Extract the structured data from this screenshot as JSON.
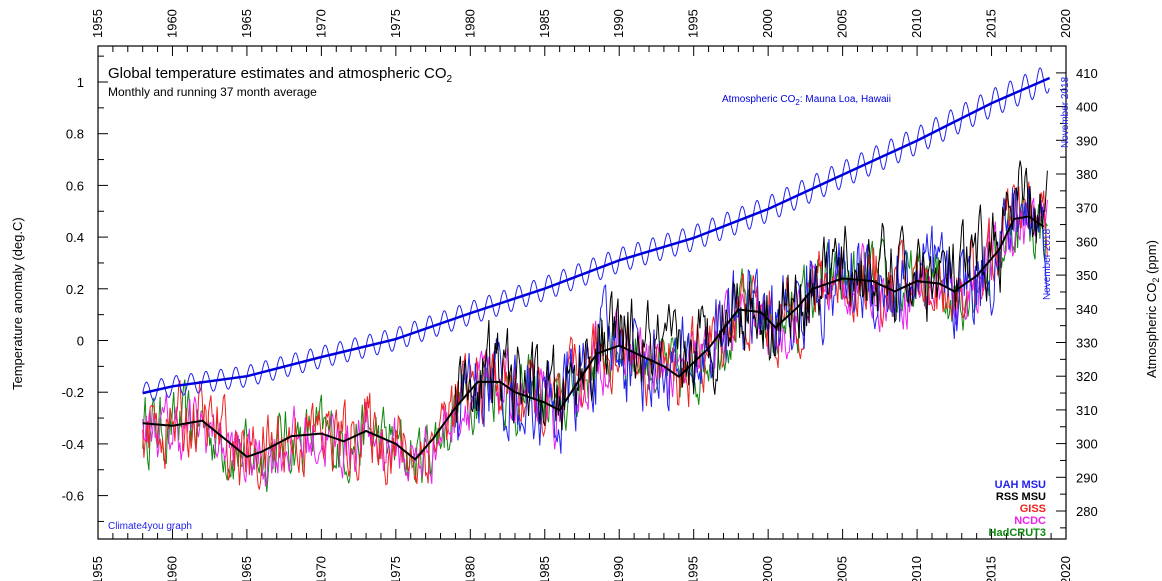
{
  "chart_data": {
    "type": "line",
    "title": "Global temperature estimates and atmospheric CO",
    "title_sub": "2",
    "subtitle": "Monthly and running 37 month average",
    "ylabel_left": "Temperature anomaly (deg.C)",
    "ylabel_right": "Atmospheric CO",
    "ylabel_right_sub": "2",
    "ylabel_right_unit": " (ppm)",
    "co2_annotation": "Atmospheric CO",
    "co2_annotation_sub": "2",
    "co2_annotation_rest": ": Mauna Loa, Hawaii",
    "note_top": "November 2018",
    "note_mid": "November 2018",
    "credit": "Climate4you graph",
    "xlim": [
      1955,
      2020
    ],
    "ylim_left": [
      -0.75,
      1.1
    ],
    "ylim_right": [
      275,
      410
    ],
    "x_ticks": [
      "1955",
      "1960",
      "1965",
      "1970",
      "1975",
      "1980",
      "1985",
      "1990",
      "1995",
      "2000",
      "2005",
      "2010",
      "2015",
      "2020"
    ],
    "y_ticks_left": [
      "-0.6",
      "-0.4",
      "-0.2",
      "0",
      "0.2",
      "0.4",
      "0.6",
      "0.8",
      "1"
    ],
    "y_ticks_right": [
      "280",
      "290",
      "300",
      "310",
      "320",
      "330",
      "340",
      "350",
      "360",
      "370",
      "380",
      "390",
      "400",
      "410"
    ],
    "grid": false,
    "legend_position": "bottom-right",
    "legend": [
      {
        "name": "UAH MSU",
        "color": "#2222ee"
      },
      {
        "name": "RSS MSU",
        "color": "#000000"
      },
      {
        "name": "GISS",
        "color": "#ee2222"
      },
      {
        "name": "NCDC",
        "color": "#ee22ee"
      },
      {
        "name": "HadCRUT3",
        "color": "#118811"
      }
    ],
    "co2_trend": {
      "name": "Atmospheric CO2: Mauna Loa, Hawaii",
      "color": "#0000dd",
      "x": [
        1958,
        1960,
        1965,
        1970,
        1975,
        1980,
        1985,
        1990,
        1995,
        2000,
        2005,
        2010,
        2015,
        2018.9
      ],
      "y": [
        315,
        317,
        320,
        325.7,
        331,
        338.7,
        346,
        354.4,
        361,
        369.6,
        379.8,
        389.9,
        401,
        408.5
      ]
    },
    "running_average": {
      "name": "Running 37 month average",
      "color": "#000000",
      "x": [
        1958,
        1960,
        1962,
        1963.5,
        1965,
        1966,
        1968,
        1970,
        1971.5,
        1973,
        1975,
        1976.3,
        1977.5,
        1979,
        1980.5,
        1982,
        1983,
        1985,
        1986,
        1987,
        1988.5,
        1990,
        1991.5,
        1993,
        1994,
        1996,
        1998,
        1999.5,
        2000.5,
        2002,
        2003,
        2005,
        2007,
        2008.5,
        2010,
        2011.5,
        2012.5,
        2014,
        2015.5,
        2016.5,
        2017.5,
        2018.5
      ],
      "y": [
        -0.32,
        -0.33,
        -0.31,
        -0.38,
        -0.45,
        -0.43,
        -0.37,
        -0.36,
        -0.39,
        -0.35,
        -0.4,
        -0.46,
        -0.38,
        -0.26,
        -0.16,
        -0.16,
        -0.2,
        -0.24,
        -0.27,
        -0.18,
        -0.05,
        -0.02,
        -0.06,
        -0.1,
        -0.14,
        -0.03,
        0.12,
        0.11,
        0.05,
        0.13,
        0.2,
        0.24,
        0.23,
        0.19,
        0.23,
        0.22,
        0.19,
        0.25,
        0.35,
        0.47,
        0.48,
        0.44
      ]
    },
    "monthly_series": [
      {
        "name": "HadCRUT3",
        "color": "#118811",
        "start": 1958.0,
        "end": 2018.8,
        "amp": 0.11,
        "offset": -0.01
      },
      {
        "name": "NCDC",
        "color": "#ee22ee",
        "start": 1958.0,
        "end": 2018.8,
        "amp": 0.1,
        "offset": -0.02
      },
      {
        "name": "GISS",
        "color": "#ee2222",
        "start": 1958.0,
        "end": 2018.8,
        "amp": 0.12,
        "offset": 0.0
      },
      {
        "name": "UAH MSU",
        "color": "#2222ee",
        "start": 1979.0,
        "end": 2018.8,
        "amp": 0.15,
        "offset": 0.0
      },
      {
        "name": "RSS MSU",
        "color": "#000000",
        "start": 1979.0,
        "end": 2018.8,
        "amp": 0.14,
        "offset": 0.03
      }
    ]
  }
}
